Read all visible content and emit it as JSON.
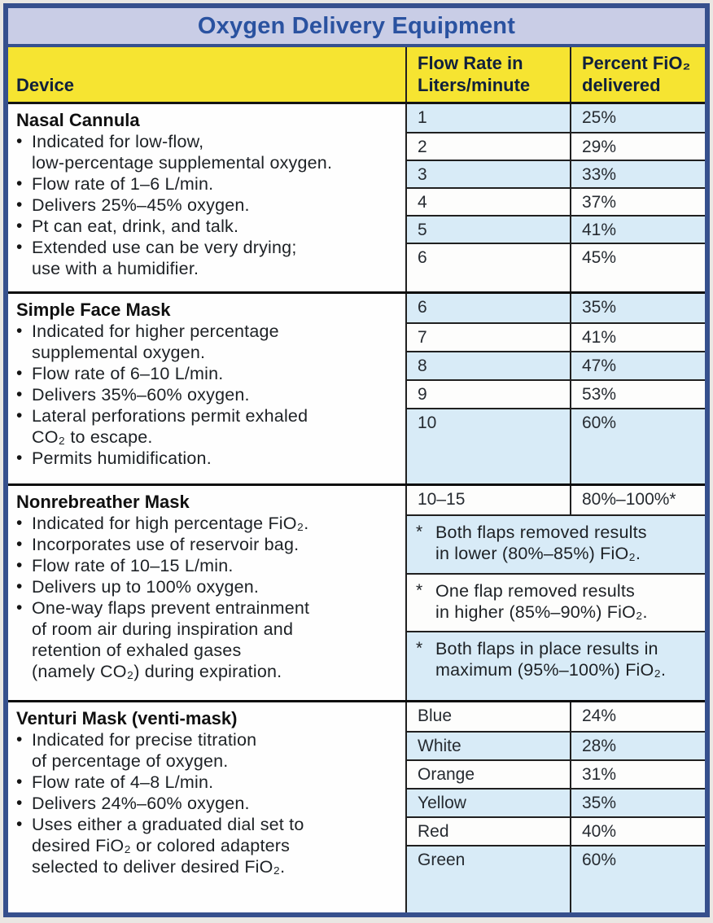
{
  "page": {
    "title": "Oxygen Delivery Equipment"
  },
  "glyphs": {
    "bullet": "•",
    "asterisk": "*"
  },
  "colors": {
    "frame_navy": "#36508d",
    "title_bg_lavender": "#c9cde6",
    "title_text_blue": "#2a52a0",
    "header_yellow": "#f6e431",
    "header_text_navy": "#10203c",
    "stripe_light_blue": "#d8ebf7",
    "row_white": "#fdfdfc",
    "grid_line": "#202020",
    "body_text": "#1d2125"
  },
  "header": {
    "device": "Device",
    "flow": "Flow Rate in\nLiters/minute",
    "fio2": "Percent FiO₂\ndelivered"
  },
  "sections": [
    {
      "name": "Nasal Cannula",
      "bullets": [
        "Indicated for low-flow,\nlow-percentage supplemental oxygen.",
        "Flow rate of 1–6 L/min.",
        "Delivers 25%–45% oxygen.",
        "Pt can eat, drink, and talk.",
        "Extended use can be very drying;\nuse with a humidifier."
      ],
      "rows": [
        {
          "flow": "1",
          "fio2": "25%"
        },
        {
          "flow": "2",
          "fio2": "29%"
        },
        {
          "flow": "3",
          "fio2": "33%"
        },
        {
          "flow": "4",
          "fio2": "37%"
        },
        {
          "flow": "5",
          "fio2": "41%"
        },
        {
          "flow": "6",
          "fio2": "45%"
        }
      ]
    },
    {
      "name": "Simple Face Mask",
      "bullets": [
        "Indicated for higher percentage\nsupplemental oxygen.",
        "Flow rate of 6–10 L/min.",
        "Delivers 35%–60% oxygen.",
        "Lateral perforations permit exhaled\nCO₂ to escape.",
        "Permits humidification."
      ],
      "rows": [
        {
          "flow": "6",
          "fio2": "35%"
        },
        {
          "flow": "7",
          "fio2": "41%"
        },
        {
          "flow": "8",
          "fio2": "47%"
        },
        {
          "flow": "9",
          "fio2": "53%"
        },
        {
          "flow": "10",
          "fio2": "60%"
        }
      ]
    },
    {
      "name": "Nonrebreather Mask",
      "bullets": [
        "Indicated for high percentage FiO₂.",
        "Incorporates use of reservoir bag.",
        "Flow rate of 10–15 L/min.",
        "Delivers up to 100% oxygen.",
        "One-way flaps prevent entrainment\nof room air during inspiration and\nretention of exhaled gases\n(namely CO₂) during expiration."
      ],
      "rows": [
        {
          "flow": "10–15",
          "fio2": "80%–100%*"
        }
      ],
      "notes": [
        "Both flaps removed results\nin lower (80%–85%) FiO₂.",
        "One flap removed results\nin higher (85%–90%) FiO₂.",
        "Both flaps in place results in\nmaximum (95%–100%) FiO₂."
      ]
    },
    {
      "name": "Venturi Mask (venti-mask)",
      "bullets": [
        "Indicated for precise titration\nof percentage of oxygen.",
        "Flow rate of 4–8 L/min.",
        "Delivers 24%–60% oxygen.",
        "Uses either a graduated dial set to\ndesired FiO₂ or colored adapters\nselected to deliver desired FiO₂."
      ],
      "rows": [
        {
          "flow": "Blue",
          "fio2": "24%"
        },
        {
          "flow": "White",
          "fio2": "28%"
        },
        {
          "flow": "Orange",
          "fio2": "31%"
        },
        {
          "flow": "Yellow",
          "fio2": "35%"
        },
        {
          "flow": "Red",
          "fio2": "40%"
        },
        {
          "flow": "Green",
          "fio2": "60%"
        }
      ]
    }
  ]
}
